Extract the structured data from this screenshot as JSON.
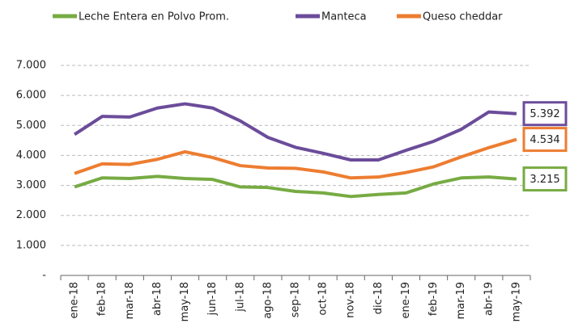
{
  "chart_data": {
    "type": "line",
    "categories": [
      "ene-18",
      "feb-18",
      "mar-18",
      "abr-18",
      "may-18",
      "jun-18",
      "jul-18",
      "ago-18",
      "sep-18",
      "oct-18",
      "nov-18",
      "dic-18",
      "ene-19",
      "feb-19",
      "mar-19",
      "abr-19",
      "may-19"
    ],
    "series": [
      {
        "name": "Leche Entera en Polvo Prom.",
        "color": "#77ab43",
        "values": [
          2950,
          3250,
          3230,
          3300,
          3230,
          3200,
          2950,
          2930,
          2800,
          2750,
          2630,
          2700,
          2750,
          3050,
          3250,
          3280,
          3215
        ],
        "value_labels": [
          null,
          null,
          null,
          null,
          null,
          null,
          null,
          null,
          null,
          null,
          null,
          null,
          null,
          null,
          null,
          null,
          "3.215"
        ]
      },
      {
        "name": "Manteca",
        "color": "#6b4c9a",
        "values": [
          4700,
          5300,
          5280,
          5580,
          5720,
          5580,
          5150,
          4600,
          4270,
          4070,
          3850,
          3850,
          4170,
          4470,
          4870,
          5450,
          5392
        ],
        "value_labels": [
          null,
          null,
          null,
          null,
          null,
          null,
          null,
          null,
          null,
          null,
          null,
          null,
          null,
          null,
          null,
          null,
          "5.392"
        ]
      },
      {
        "name": "Queso cheddar",
        "color": "#ed7d31",
        "values": [
          3400,
          3720,
          3700,
          3870,
          4120,
          3930,
          3660,
          3580,
          3570,
          3450,
          3250,
          3280,
          3430,
          3620,
          3950,
          4260,
          4534
        ],
        "value_labels": [
          null,
          null,
          null,
          null,
          null,
          null,
          null,
          null,
          null,
          null,
          null,
          null,
          null,
          null,
          null,
          null,
          "4.534"
        ]
      }
    ],
    "ylim": [
      0,
      7000
    ],
    "yticks": [
      {
        "value": 0,
        "label": "-"
      },
      {
        "value": 1000,
        "label": "1.000"
      },
      {
        "value": 2000,
        "label": "2.000"
      },
      {
        "value": 3000,
        "label": "3.000"
      },
      {
        "value": 4000,
        "label": "4.000"
      },
      {
        "value": 5000,
        "label": "5.000"
      },
      {
        "value": 6000,
        "label": "6.000"
      },
      {
        "value": 7000,
        "label": "7.000"
      }
    ],
    "grid": true
  }
}
